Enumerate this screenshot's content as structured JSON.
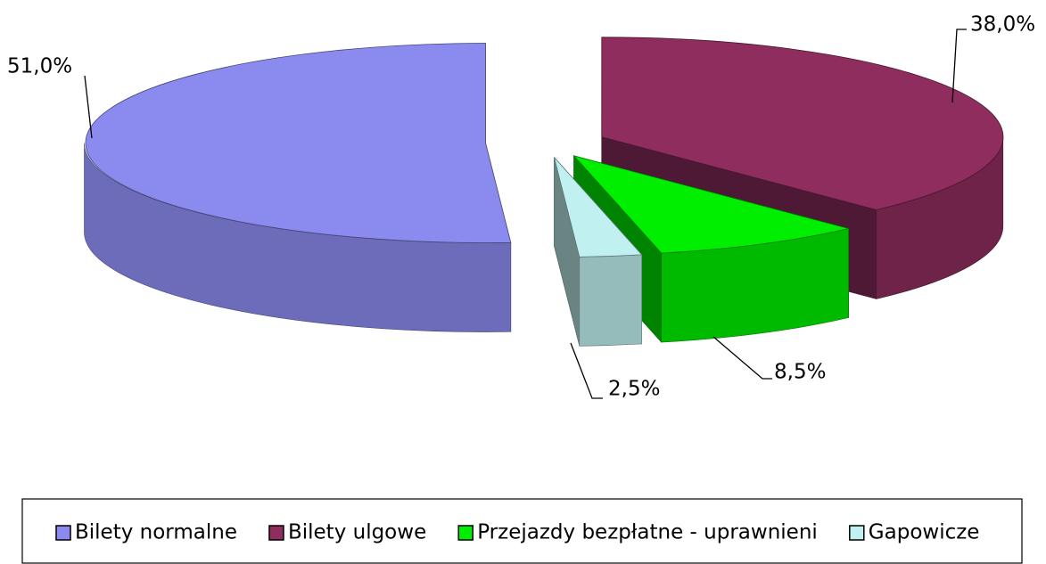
{
  "chart_data": {
    "type": "pie3d",
    "categories": [
      "Bilety normalne",
      "Bilety ulgowe",
      "Przejazdy bezpłatne - uprawnieni",
      "Gapowicze"
    ],
    "values": [
      51,
      38,
      8.5,
      2.5
    ],
    "value_labels": [
      "51,0%",
      "38,0%",
      "8,5%",
      "2,5%"
    ],
    "colors": [
      "#8b8bef",
      "#8e2d5e",
      "#00ee00",
      "#c0f0f0"
    ],
    "legend": "bottom"
  }
}
